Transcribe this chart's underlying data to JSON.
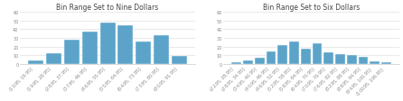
{
  "chart1": {
    "title": "Bin Range Set to Nine Dollars",
    "bar_color": "#5BA3C9",
    "values": [
      4,
      12,
      28,
      37,
      48,
      44,
      26,
      33,
      9
    ],
    "labels": [
      "($10.95, $19.95]",
      "($19.95, $28.95]",
      "($28.95, $37.95]",
      "($37.95, $46.95]",
      "($46.95, $55.95]",
      "($55.95, $64.95]",
      "($64.95, $73.95]",
      "($73.95, $80.95]",
      "($80.95, $91.95]"
    ],
    "ylim": [
      0,
      60
    ],
    "yticks": [
      0,
      10,
      20,
      30,
      40,
      50,
      60
    ]
  },
  "chart2": {
    "title": "Bin Range Set to Six Dollars",
    "bar_color": "#5BA3C9",
    "values": [
      2,
      4,
      7,
      15,
      22,
      26,
      18,
      24,
      13,
      11,
      10,
      8,
      3,
      2
    ],
    "labels": [
      "($22.95, $28.95]",
      "($28.95, $34.95]",
      "($34.95, $40.95]",
      "($40.95, $46.95]",
      "($46.95, $52.95]",
      "($52.95, $58.95]",
      "($58.95, $64.95]",
      "($64.95, $70.95]",
      "($70.95, $76.95]",
      "($76.95, $82.95]",
      "($82.95, $88.95]",
      "($88.95, $94.95]",
      "($94.95, $100.95]",
      "($100.95, $106.95]"
    ],
    "ylim": [
      0,
      60
    ],
    "yticks": [
      0,
      10,
      20,
      30,
      40,
      50,
      60
    ]
  },
  "background_color": "#FFFFFF",
  "tick_fontsize": 3.5,
  "title_fontsize": 5.5,
  "label_color": "#888888",
  "grid_color": "#E0E0E0",
  "bar_edge_color": "#FFFFFF"
}
